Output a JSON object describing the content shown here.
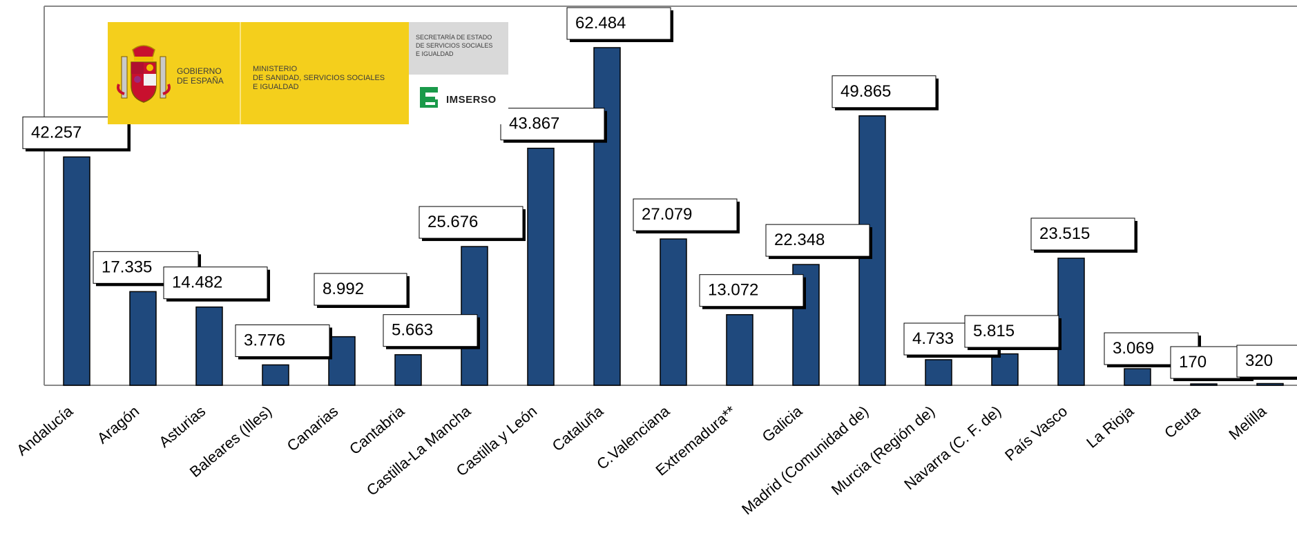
{
  "header": {
    "gobierno": "GOBIERNO\nDE ESPAÑA",
    "ministerio": "MINISTERIO\nDE SANIDAD, SERVICIOS SOCIALES\nE IGUALDAD",
    "secretaria": "SECRETARÍA DE ESTADO\nDE SERVICIOS SOCIALES\nE IGUALDAD",
    "imserso": "IMSERSO"
  },
  "colors": {
    "bar": "#1f497d",
    "label_bg": "#ffffff",
    "header_yellow": "#f4cf1c",
    "imserso_green": "#1a9a4a"
  },
  "chart_data": {
    "type": "bar",
    "title": "",
    "xlabel": "",
    "ylabel": "",
    "ylim": [
      0,
      66000
    ],
    "grid": false,
    "legend": "none",
    "categories": [
      "Andalucía",
      "Aragón",
      "Asturias",
      "Baleares (Illes)",
      "Canarias",
      "Cantabria",
      "Castilla-La Mancha",
      "Castilla y León",
      "Cataluña",
      "C.Valenciana",
      "Extremadura**",
      "Galicia",
      "Madrid (Comunidad de)",
      "Murcia (Región de)",
      "Navarra (C. F. de)",
      "País Vasco",
      "La Rioja",
      "Ceuta",
      "Melilla"
    ],
    "values": [
      42257,
      17335,
      14482,
      3776,
      8992,
      5663,
      25676,
      43867,
      62484,
      27079,
      13072,
      22348,
      49865,
      4733,
      5815,
      23515,
      3069,
      170,
      320
    ],
    "data_labels": [
      "42.257",
      "17.335",
      "14.482",
      "3.776",
      "8.992",
      "5.663",
      "25.676",
      "43.867",
      "62.484",
      "27.079",
      "13.072",
      "22.348",
      "49.865",
      "4.733",
      "5.815",
      "23.515",
      "3.069",
      "170",
      "320"
    ]
  }
}
